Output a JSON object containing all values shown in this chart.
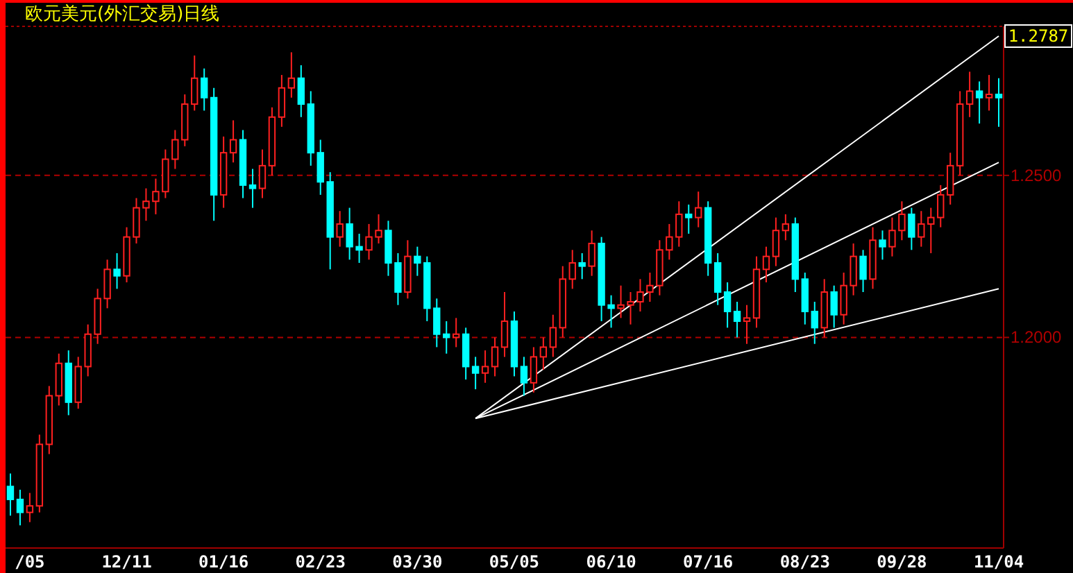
{
  "chart_data": {
    "type": "candlestick",
    "title": "欧元美元(外汇交易)日线",
    "categories": [
      null,
      null,
      "/05",
      null,
      null,
      null,
      null,
      null,
      null,
      null,
      null,
      null,
      "12/11",
      null,
      null,
      null,
      null,
      null,
      null,
      null,
      null,
      null,
      "01/16",
      null,
      null,
      null,
      null,
      null,
      null,
      null,
      null,
      null,
      "02/23",
      null,
      null,
      null,
      null,
      null,
      null,
      null,
      null,
      null,
      "03/30",
      null,
      null,
      null,
      null,
      null,
      null,
      null,
      null,
      null,
      "05/05",
      null,
      null,
      null,
      null,
      null,
      null,
      null,
      null,
      null,
      "06/10",
      null,
      null,
      null,
      null,
      null,
      null,
      null,
      null,
      null,
      "07/16",
      null,
      null,
      null,
      null,
      null,
      null,
      null,
      null,
      null,
      "08/23",
      null,
      null,
      null,
      null,
      null,
      null,
      null,
      null,
      null,
      "09/28",
      null,
      null,
      null,
      null,
      null,
      null,
      null,
      null,
      null,
      "11/04"
    ],
    "ohlc": [
      [
        1.154,
        1.158,
        1.145,
        1.15
      ],
      [
        1.15,
        1.153,
        1.142,
        1.146
      ],
      [
        1.146,
        1.152,
        1.143,
        1.148
      ],
      [
        1.148,
        1.17,
        1.146,
        1.167
      ],
      [
        1.167,
        1.185,
        1.164,
        1.182
      ],
      [
        1.182,
        1.195,
        1.179,
        1.192
      ],
      [
        1.192,
        1.196,
        1.176,
        1.18
      ],
      [
        1.18,
        1.194,
        1.178,
        1.191
      ],
      [
        1.191,
        1.204,
        1.188,
        1.201
      ],
      [
        1.201,
        1.215,
        1.198,
        1.212
      ],
      [
        1.212,
        1.224,
        1.209,
        1.221
      ],
      [
        1.221,
        1.226,
        1.215,
        1.219
      ],
      [
        1.219,
        1.234,
        1.217,
        1.231
      ],
      [
        1.231,
        1.243,
        1.229,
        1.24
      ],
      [
        1.24,
        1.246,
        1.236,
        1.242
      ],
      [
        1.242,
        1.249,
        1.238,
        1.245
      ],
      [
        1.245,
        1.258,
        1.243,
        1.255
      ],
      [
        1.255,
        1.264,
        1.252,
        1.261
      ],
      [
        1.261,
        1.275,
        1.259,
        1.272
      ],
      [
        1.272,
        1.287,
        1.27,
        1.28
      ],
      [
        1.28,
        1.283,
        1.27,
        1.274
      ],
      [
        1.274,
        1.277,
        1.236,
        1.244
      ],
      [
        1.244,
        1.262,
        1.24,
        1.257
      ],
      [
        1.257,
        1.267,
        1.254,
        1.261
      ],
      [
        1.261,
        1.264,
        1.243,
        1.247
      ],
      [
        1.247,
        1.252,
        1.24,
        1.246
      ],
      [
        1.246,
        1.258,
        1.243,
        1.253
      ],
      [
        1.253,
        1.271,
        1.25,
        1.268
      ],
      [
        1.268,
        1.281,
        1.265,
        1.277
      ],
      [
        1.277,
        1.288,
        1.274,
        1.28
      ],
      [
        1.28,
        1.284,
        1.268,
        1.272
      ],
      [
        1.272,
        1.276,
        1.253,
        1.257
      ],
      [
        1.257,
        1.261,
        1.244,
        1.248
      ],
      [
        1.248,
        1.251,
        1.221,
        1.231
      ],
      [
        1.231,
        1.239,
        1.228,
        1.235
      ],
      [
        1.235,
        1.24,
        1.224,
        1.228
      ],
      [
        1.228,
        1.232,
        1.223,
        1.227
      ],
      [
        1.227,
        1.235,
        1.224,
        1.231
      ],
      [
        1.231,
        1.238,
        1.229,
        1.233
      ],
      [
        1.233,
        1.236,
        1.219,
        1.223
      ],
      [
        1.223,
        1.226,
        1.21,
        1.214
      ],
      [
        1.214,
        1.23,
        1.212,
        1.225
      ],
      [
        1.225,
        1.228,
        1.219,
        1.223
      ],
      [
        1.223,
        1.225,
        1.205,
        1.209
      ],
      [
        1.209,
        1.212,
        1.197,
        1.201
      ],
      [
        1.201,
        1.205,
        1.195,
        1.2
      ],
      [
        1.2,
        1.206,
        1.197,
        1.201
      ],
      [
        1.201,
        1.203,
        1.187,
        1.191
      ],
      [
        1.191,
        1.194,
        1.184,
        1.189
      ],
      [
        1.189,
        1.196,
        1.186,
        1.191
      ],
      [
        1.191,
        1.2,
        1.188,
        1.197
      ],
      [
        1.197,
        1.214,
        1.194,
        1.205
      ],
      [
        1.205,
        1.208,
        1.188,
        1.191
      ],
      [
        1.191,
        1.194,
        1.182,
        1.186
      ],
      [
        1.186,
        1.197,
        1.183,
        1.194
      ],
      [
        1.194,
        1.2,
        1.19,
        1.197
      ],
      [
        1.197,
        1.207,
        1.194,
        1.203
      ],
      [
        1.203,
        1.222,
        1.2,
        1.218
      ],
      [
        1.218,
        1.227,
        1.215,
        1.223
      ],
      [
        1.223,
        1.226,
        1.218,
        1.222
      ],
      [
        1.222,
        1.233,
        1.219,
        1.229
      ],
      [
        1.229,
        1.231,
        1.205,
        1.21
      ],
      [
        1.21,
        1.213,
        1.203,
        1.209
      ],
      [
        1.209,
        1.216,
        1.206,
        1.21
      ],
      [
        1.21,
        1.214,
        1.204,
        1.211
      ],
      [
        1.211,
        1.218,
        1.208,
        1.214
      ],
      [
        1.214,
        1.22,
        1.211,
        1.216
      ],
      [
        1.216,
        1.23,
        1.213,
        1.227
      ],
      [
        1.227,
        1.235,
        1.224,
        1.231
      ],
      [
        1.231,
        1.242,
        1.228,
        1.238
      ],
      [
        1.238,
        1.241,
        1.232,
        1.237
      ],
      [
        1.237,
        1.245,
        1.234,
        1.24
      ],
      [
        1.24,
        1.242,
        1.219,
        1.223
      ],
      [
        1.223,
        1.226,
        1.21,
        1.214
      ],
      [
        1.214,
        1.217,
        1.203,
        1.208
      ],
      [
        1.208,
        1.211,
        1.2,
        1.205
      ],
      [
        1.205,
        1.21,
        1.198,
        1.206
      ],
      [
        1.206,
        1.225,
        1.203,
        1.221
      ],
      [
        1.221,
        1.228,
        1.217,
        1.225
      ],
      [
        1.225,
        1.237,
        1.222,
        1.233
      ],
      [
        1.233,
        1.238,
        1.23,
        1.235
      ],
      [
        1.235,
        1.237,
        1.214,
        1.218
      ],
      [
        1.218,
        1.22,
        1.204,
        1.208
      ],
      [
        1.208,
        1.211,
        1.198,
        1.203
      ],
      [
        1.203,
        1.218,
        1.2,
        1.214
      ],
      [
        1.214,
        1.216,
        1.203,
        1.207
      ],
      [
        1.207,
        1.22,
        1.204,
        1.216
      ],
      [
        1.216,
        1.229,
        1.213,
        1.225
      ],
      [
        1.225,
        1.227,
        1.214,
        1.218
      ],
      [
        1.218,
        1.234,
        1.215,
        1.23
      ],
      [
        1.23,
        1.233,
        1.224,
        1.228
      ],
      [
        1.228,
        1.237,
        1.225,
        1.233
      ],
      [
        1.233,
        1.242,
        1.23,
        1.238
      ],
      [
        1.238,
        1.24,
        1.227,
        1.231
      ],
      [
        1.231,
        1.239,
        1.228,
        1.235
      ],
      [
        1.235,
        1.24,
        1.226,
        1.237
      ],
      [
        1.237,
        1.247,
        1.234,
        1.244
      ],
      [
        1.244,
        1.257,
        1.241,
        1.253
      ],
      [
        1.253,
        1.276,
        1.25,
        1.272
      ],
      [
        1.272,
        1.282,
        1.268,
        1.276
      ],
      [
        1.276,
        1.279,
        1.266,
        1.274
      ],
      [
        1.274,
        1.281,
        1.27,
        1.275
      ],
      [
        1.275,
        1.28,
        1.265,
        1.274
      ]
    ],
    "series": [
      {
        "type": "line",
        "color": "#ffffff",
        "values": [
          null,
          null,
          null,
          null,
          null,
          null,
          null,
          null,
          null,
          null,
          null,
          null,
          null,
          null,
          null,
          null,
          null,
          null,
          null,
          null,
          null,
          null,
          null,
          null,
          null,
          null,
          null,
          null,
          null,
          null,
          null,
          null,
          null,
          null,
          null,
          null,
          null,
          null,
          null,
          null,
          null,
          null,
          null,
          null,
          null,
          null,
          null,
          null,
          1.175,
          null,
          null,
          null,
          null,
          null,
          null,
          null,
          null,
          null,
          null,
          null,
          null,
          null,
          null,
          null,
          null,
          null,
          null,
          null,
          null,
          null,
          null,
          null,
          null,
          null,
          null,
          null,
          null,
          null,
          null,
          null,
          null,
          null,
          null,
          null,
          null,
          null,
          null,
          null,
          null,
          null,
          null,
          null,
          null,
          null,
          null,
          null,
          null,
          null,
          null,
          null,
          null,
          null,
          1.293
        ]
      },
      {
        "type": "line",
        "color": "#ffffff",
        "values": [
          null,
          null,
          null,
          null,
          null,
          null,
          null,
          null,
          null,
          null,
          null,
          null,
          null,
          null,
          null,
          null,
          null,
          null,
          null,
          null,
          null,
          null,
          null,
          null,
          null,
          null,
          null,
          null,
          null,
          null,
          null,
          null,
          null,
          null,
          null,
          null,
          null,
          null,
          null,
          null,
          null,
          null,
          null,
          null,
          null,
          null,
          null,
          null,
          1.175,
          null,
          null,
          null,
          null,
          null,
          null,
          null,
          null,
          null,
          null,
          null,
          null,
          null,
          null,
          null,
          null,
          null,
          null,
          null,
          null,
          null,
          null,
          null,
          null,
          null,
          null,
          null,
          null,
          null,
          null,
          null,
          null,
          null,
          null,
          null,
          null,
          null,
          null,
          null,
          null,
          null,
          null,
          null,
          null,
          null,
          null,
          null,
          null,
          null,
          null,
          null,
          null,
          null,
          1.254
        ]
      },
      {
        "type": "line",
        "color": "#ffffff",
        "values": [
          null,
          null,
          null,
          null,
          null,
          null,
          null,
          null,
          null,
          null,
          null,
          null,
          null,
          null,
          null,
          null,
          null,
          null,
          null,
          null,
          null,
          null,
          null,
          null,
          null,
          null,
          null,
          null,
          null,
          null,
          null,
          null,
          null,
          null,
          null,
          null,
          null,
          null,
          null,
          null,
          null,
          null,
          null,
          null,
          null,
          null,
          null,
          null,
          1.175,
          null,
          null,
          null,
          null,
          null,
          null,
          null,
          null,
          null,
          null,
          null,
          null,
          null,
          null,
          null,
          null,
          null,
          null,
          null,
          null,
          null,
          null,
          null,
          null,
          null,
          null,
          null,
          null,
          null,
          null,
          null,
          null,
          null,
          null,
          null,
          null,
          null,
          null,
          null,
          null,
          null,
          null,
          null,
          null,
          null,
          null,
          null,
          null,
          null,
          null,
          null,
          null,
          null,
          1.215
        ]
      }
    ],
    "ylim": [
      1.135,
      1.296
    ],
    "yticks": [
      {
        "value": 1.2,
        "label": "1.2000"
      },
      {
        "value": 1.25,
        "label": "1.2500"
      }
    ],
    "grid": "y",
    "annotations": [
      "1.2787"
    ]
  }
}
